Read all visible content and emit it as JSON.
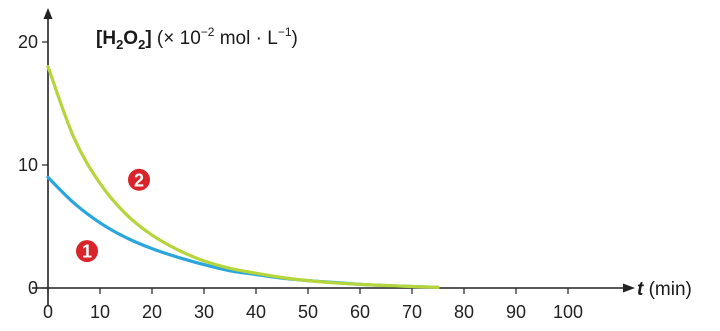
{
  "chart_data": {
    "type": "line",
    "ylabel": {
      "species_open": "[H",
      "sub_a": "2",
      "species_mid": "O",
      "sub_b": "2",
      "species_close": "]",
      "unit_open": " (× 10",
      "exp_a": "−2",
      "unit_mid": " mol · L",
      "exp_b": "−1",
      "unit_close": ")"
    },
    "xlabel": {
      "var": "t",
      "unit": " (min)"
    },
    "xlim": [
      0,
      105
    ],
    "ylim": [
      0,
      21
    ],
    "x_ticks": [
      0,
      10,
      20,
      30,
      40,
      50,
      60,
      70,
      80,
      90,
      100
    ],
    "y_ticks": [
      0,
      10,
      20
    ],
    "grid": false,
    "series": [
      {
        "name": "1",
        "color": "#2aa6dc",
        "points": [
          [
            0,
            9.0
          ],
          [
            5,
            6.9
          ],
          [
            10,
            5.3
          ],
          [
            15,
            4.1
          ],
          [
            20,
            3.2
          ],
          [
            25,
            2.5
          ],
          [
            30,
            1.9
          ],
          [
            35,
            1.4
          ],
          [
            40,
            1.1
          ],
          [
            45,
            0.8
          ],
          [
            50,
            0.6
          ],
          [
            55,
            0.45
          ],
          [
            60,
            0.3
          ],
          [
            65,
            0.2
          ],
          [
            70,
            0.12
          ],
          [
            75,
            0.05
          ]
        ]
      },
      {
        "name": "2",
        "color": "#b5d53a",
        "points": [
          [
            0,
            18.0
          ],
          [
            5,
            12.2
          ],
          [
            10,
            8.5
          ],
          [
            15,
            6.0
          ],
          [
            20,
            4.3
          ],
          [
            25,
            3.1
          ],
          [
            30,
            2.2
          ],
          [
            35,
            1.6
          ],
          [
            40,
            1.2
          ],
          [
            45,
            0.85
          ],
          [
            50,
            0.6
          ],
          [
            55,
            0.42
          ],
          [
            60,
            0.3
          ],
          [
            65,
            0.2
          ],
          [
            70,
            0.12
          ],
          [
            75,
            0.05
          ]
        ]
      }
    ],
    "annotations": [
      {
        "text": "1",
        "x": 7.5,
        "y": 3.0,
        "color": "#d8242a"
      },
      {
        "text": "2",
        "x": 17.5,
        "y": 8.8,
        "color": "#d8242a"
      }
    ]
  }
}
